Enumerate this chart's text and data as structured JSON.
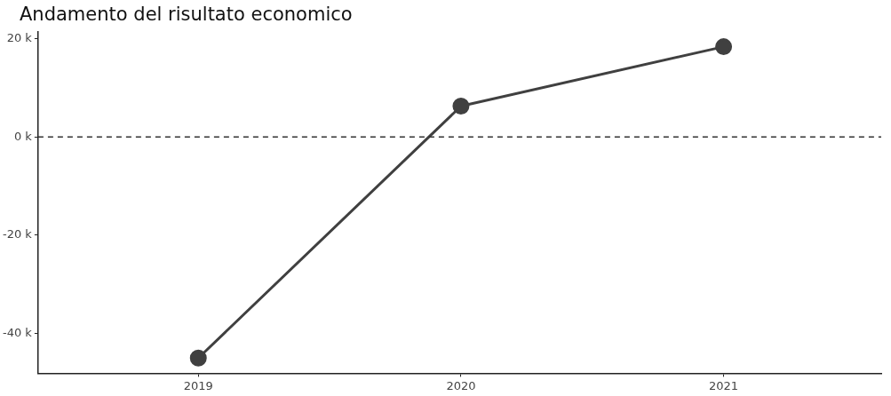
{
  "chart_data": {
    "type": "line",
    "title": "Andamento del risultato economico",
    "x": [
      2019,
      2020,
      2021
    ],
    "series": [
      {
        "color": "#404040",
        "values": [
          -45,
          6.3,
          18.4
        ]
      }
    ],
    "xlim": [
      2018.39,
      2021.6
    ],
    "xticks": [
      2019,
      2020,
      2021
    ],
    "ylim": [
      -48.1,
      21.4
    ],
    "yticks": [
      {
        "value": -40,
        "label": "-40 k"
      },
      {
        "value": -20,
        "label": "-20 k"
      },
      {
        "value": 0,
        "label": "0 k"
      },
      {
        "value": 20,
        "label": "20 k"
      }
    ],
    "ref_lines": [
      {
        "axis": "y",
        "value": 0,
        "color": "#333333",
        "line_style": "dashed"
      }
    ],
    "grid": false,
    "legend": false,
    "marker": "circle",
    "line_style": "solid"
  }
}
